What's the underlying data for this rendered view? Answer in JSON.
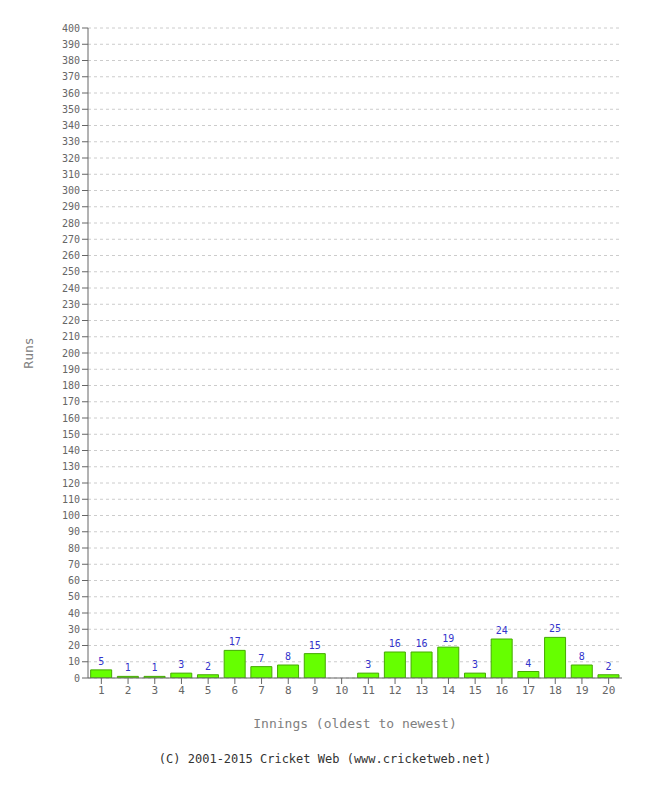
{
  "chart_data": {
    "type": "bar",
    "categories": [
      "1",
      "2",
      "3",
      "4",
      "5",
      "6",
      "7",
      "8",
      "9",
      "10",
      "11",
      "12",
      "13",
      "14",
      "15",
      "16",
      "17",
      "18",
      "19",
      "20"
    ],
    "values": [
      5,
      1,
      1,
      3,
      2,
      17,
      7,
      8,
      15,
      0,
      3,
      16,
      16,
      19,
      3,
      24,
      4,
      25,
      8,
      2
    ],
    "color": "#66ff00",
    "xlabel": "Innings (oldest to newest)",
    "ylabel": "Runs",
    "ylim": [
      0,
      400
    ],
    "yticks": [
      0,
      10,
      20,
      30,
      40,
      50,
      60,
      70,
      80,
      90,
      100,
      110,
      120,
      130,
      140,
      150,
      160,
      170,
      180,
      190,
      200,
      210,
      220,
      230,
      240,
      250,
      260,
      270,
      280,
      290,
      300,
      310,
      320,
      330,
      340,
      350,
      360,
      370,
      380,
      390,
      400
    ],
    "grid": true,
    "data_labels": true,
    "annotations": [
      "(C) 2001-2015 Cricket Web (www.cricketweb.net)"
    ]
  }
}
